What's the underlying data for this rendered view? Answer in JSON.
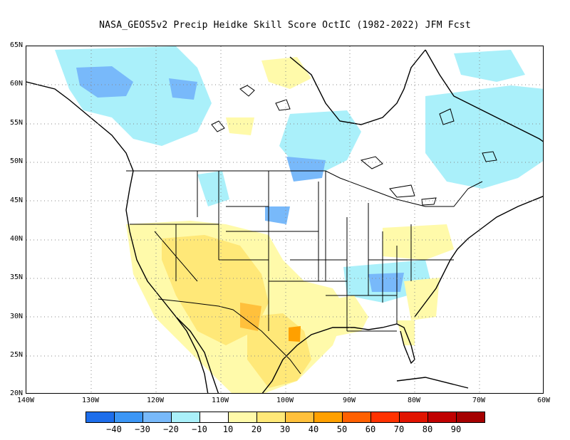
{
  "title": "NASA_GEOS5v2 Precip Heidke Skill Score OctIC (1982-2022) JFM Fcst",
  "lat_labels": [
    "65N",
    "60N",
    "55N",
    "50N",
    "45N",
    "40N",
    "35N",
    "30N",
    "25N",
    "20N"
  ],
  "lon_labels": [
    "140W",
    "130W",
    "120W",
    "110W",
    "100W",
    "90W",
    "80W",
    "70W",
    "60W"
  ],
  "colorbar": {
    "colors": [
      "#1e6eeb",
      "#3c96f5",
      "#78b9fa",
      "#aaf0fa",
      "#ffffff",
      "#fffaaa",
      "#ffe878",
      "#ffc03c",
      "#ffa000",
      "#ff6000",
      "#ff3200",
      "#e11400",
      "#c00000",
      "#a50000"
    ],
    "labels": [
      "−40",
      "−30",
      "−20",
      "−10",
      "10",
      "20",
      "30",
      "40",
      "50",
      "60",
      "70",
      "80",
      "90"
    ]
  },
  "map_colors": {
    "neg_20_10": "#aaf0fa",
    "neg_30_20": "#78b9fa",
    "pos_10_20": "#fffaaa",
    "pos_20_30": "#ffe878",
    "pos_30_40": "#ffc03c",
    "pos_40_50": "#ffa000"
  }
}
